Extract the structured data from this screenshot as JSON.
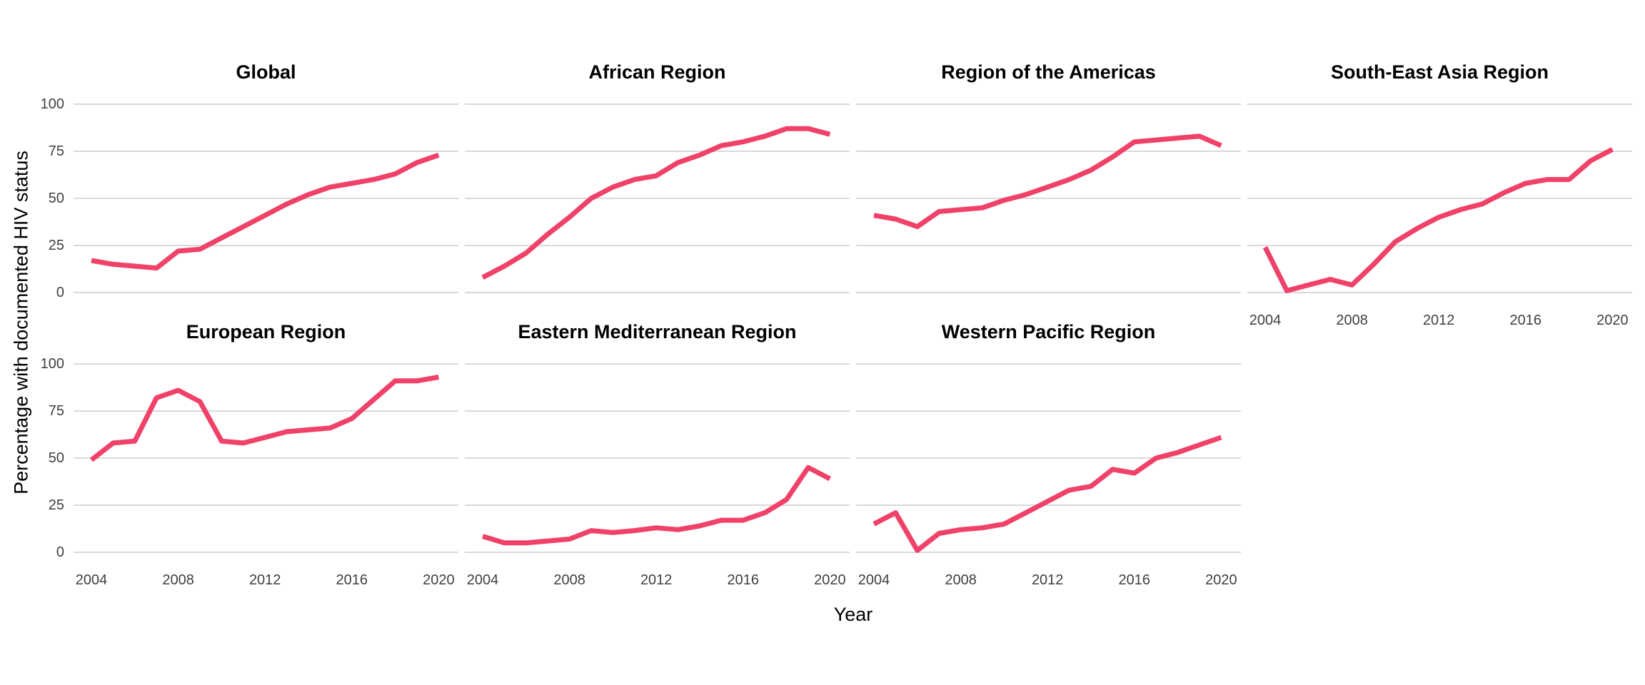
{
  "chart_data": {
    "type": "line",
    "xlabel": "Year",
    "ylabel": "Percentage with documented HIV status",
    "x": [
      2004,
      2005,
      2006,
      2007,
      2008,
      2009,
      2010,
      2011,
      2012,
      2013,
      2014,
      2015,
      2016,
      2017,
      2018,
      2019,
      2020
    ],
    "x_ticks": [
      2004,
      2008,
      2012,
      2016,
      2020
    ],
    "y_ticks": [
      100,
      75,
      50,
      25,
      0
    ],
    "xlim": [
      2004,
      2020
    ],
    "ylim": [
      0,
      100
    ],
    "grid": true,
    "legend": false,
    "line_color": "#F04169",
    "grid_color": "#D9D9D9",
    "facets": [
      {
        "title": "Global",
        "row": 0,
        "col": 0,
        "show_x_axis": false,
        "values": [
          17,
          15,
          14,
          13,
          22,
          23,
          29,
          35,
          41,
          47,
          52,
          56,
          58,
          60,
          63,
          69,
          73
        ]
      },
      {
        "title": "African Region",
        "row": 0,
        "col": 1,
        "show_x_axis": false,
        "values": [
          8,
          14,
          21,
          31,
          40,
          50,
          56,
          60,
          62,
          69,
          73,
          78,
          80,
          83,
          87,
          87,
          84
        ]
      },
      {
        "title": "Region of the Americas",
        "row": 0,
        "col": 2,
        "show_x_axis": false,
        "values": [
          41,
          39,
          35,
          43,
          44,
          45,
          49,
          52,
          56,
          60,
          65,
          72,
          80,
          81,
          82,
          83,
          78
        ]
      },
      {
        "title": "South-East Asia Region",
        "row": 0,
        "col": 3,
        "show_x_axis": true,
        "values": [
          24,
          1,
          4,
          7,
          4,
          15,
          27,
          34,
          40,
          44,
          47,
          53,
          58,
          60,
          60,
          70,
          76
        ]
      },
      {
        "title": "European Region",
        "row": 1,
        "col": 0,
        "show_x_axis": true,
        "values": [
          49,
          58,
          59,
          82,
          86,
          80,
          59,
          58,
          61,
          64,
          65,
          66,
          71,
          81,
          91,
          91,
          93
        ]
      },
      {
        "title": "Eastern Mediterranean Region",
        "row": 1,
        "col": 1,
        "show_x_axis": true,
        "values": [
          8.5,
          5,
          5,
          6,
          7,
          11.5,
          10.5,
          11.5,
          13,
          12,
          14,
          17,
          17,
          21,
          28,
          45,
          39
        ]
      },
      {
        "title": "Western Pacific Region",
        "row": 1,
        "col": 2,
        "show_x_axis": true,
        "values": [
          15,
          21,
          1,
          10,
          12,
          13,
          15,
          21,
          27,
          33,
          35,
          44,
          42,
          50,
          53,
          57,
          61
        ]
      }
    ]
  }
}
